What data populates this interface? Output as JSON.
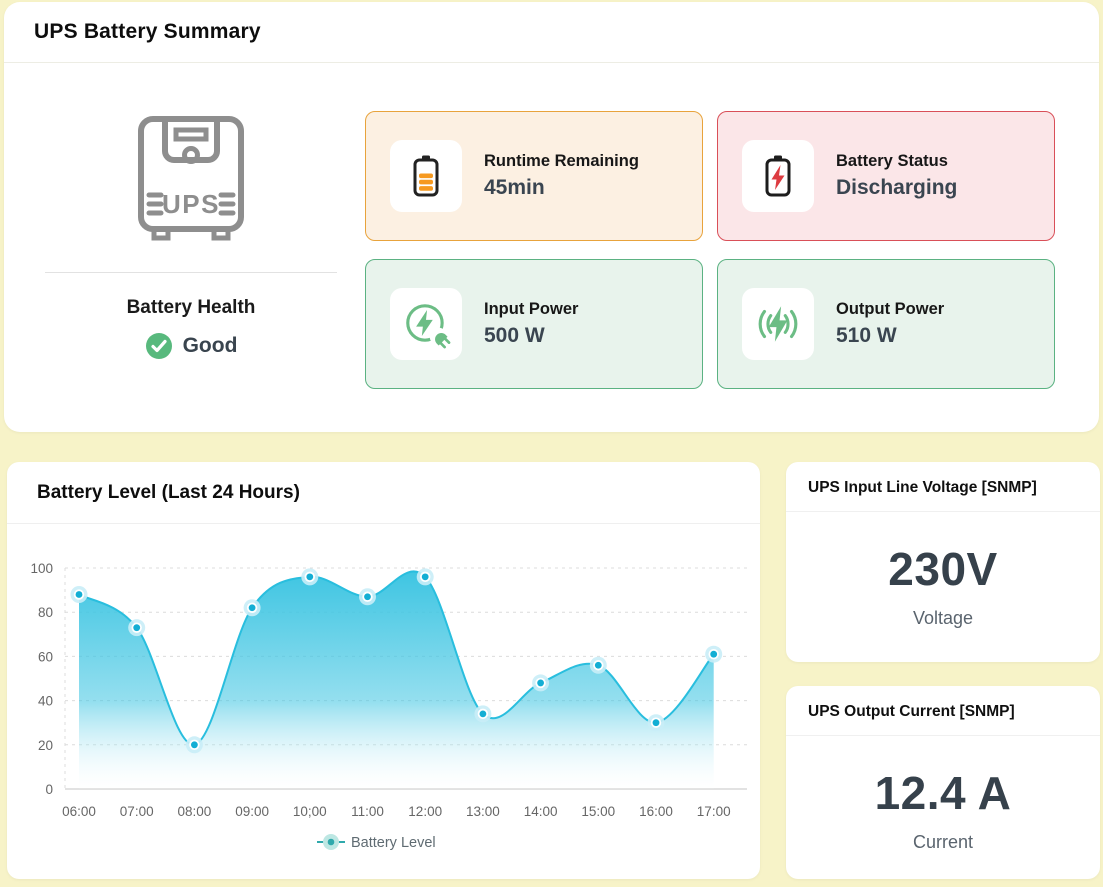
{
  "header": {
    "title": "UPS Battery Summary"
  },
  "device": {
    "label": "UPS",
    "health_label": "Battery Health",
    "health_status": "Good",
    "health_color": "#58B97D"
  },
  "stats": [
    {
      "label": "Runtime Remaining",
      "value": "45min",
      "icon": "battery-charge-icon",
      "bg": "#FCF0E2",
      "border": "#E8A33C",
      "accent": "#F6991F"
    },
    {
      "label": "Battery Status",
      "value": "Discharging",
      "icon": "battery-discharge-icon",
      "bg": "#FBE6E8",
      "border": "#D94F58",
      "accent": "#DD3B41"
    },
    {
      "label": "Input Power",
      "value": "500 W",
      "icon": "power-input-icon",
      "bg": "#E8F3EC",
      "border": "#5BB282",
      "accent": "#6CBD85"
    },
    {
      "label": "Output Power",
      "value": "510 W",
      "icon": "power-output-icon",
      "bg": "#E8F3EC",
      "border": "#5BB282",
      "accent": "#6CBD85"
    }
  ],
  "chart": {
    "title": "Battery Level (Last 24 Hours)"
  },
  "chart_data": {
    "type": "area",
    "title": "Battery Level (Last 24 Hours)",
    "categories": [
      "06:00",
      "07:00",
      "08:00",
      "09:00",
      "10;00",
      "11:00",
      "12:00",
      "13:00",
      "14:00",
      "15:00",
      "16:00",
      "17:00"
    ],
    "values": [
      88,
      73,
      20,
      82,
      96,
      87,
      96,
      34,
      48,
      56,
      30,
      61
    ],
    "xlabel": "",
    "ylabel": "",
    "ylim": [
      0,
      100
    ],
    "yticks": [
      0,
      20,
      40,
      60,
      80,
      100
    ],
    "grid": true,
    "legend": [
      "Battery Level"
    ],
    "legend_position": "bottom",
    "colors": {
      "line": "#29BEDE",
      "area_top": "#3EC5E2",
      "area_bottom": "#FFFFFF",
      "dot": "#14AED4",
      "dot_ring": "#FFFFFF",
      "dot_halo": "#C9EDF7",
      "legend_marker": "#2FA9AC",
      "legend_halo": "#BDE7E3",
      "grid_line": "#DCDCDC",
      "axis_line": "#D8D8D8",
      "tick_text": "#666666"
    }
  },
  "gauges": [
    {
      "title": "UPS Input Line Voltage [SNMP]",
      "value": "230V",
      "label": "Voltage"
    },
    {
      "title": "UPS Output Current [SNMP]",
      "value": "12.4 A",
      "label": "Current"
    }
  ]
}
